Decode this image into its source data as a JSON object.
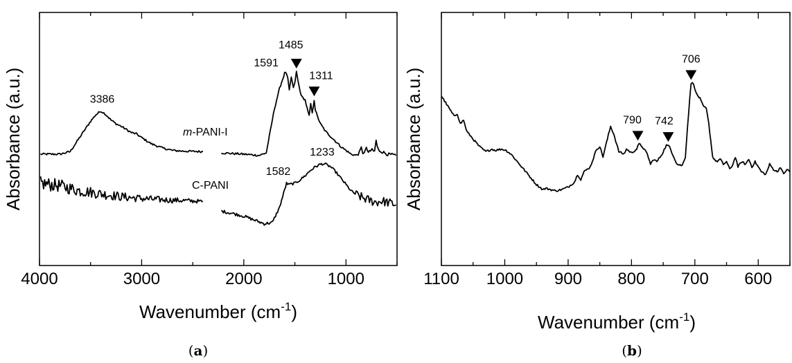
{
  "chart_data": [
    {
      "panel": "(a)",
      "panel_letter": "a",
      "type": "line",
      "xlabel": "Wavenumber (cm",
      "xlabel_sup": "-1",
      "xlabel_close": ")",
      "ylabel": "Absorbance (a.u.)",
      "xlim": [
        4000,
        500
      ],
      "x_ticks": [
        4000,
        3000,
        2000,
        1000
      ],
      "ylim": [
        0,
        1
      ],
      "x_gap": [
        2400,
        2220
      ],
      "series": [
        {
          "name": "m-PANI-I",
          "label_italic": "m",
          "label_rest": "-PANI-I",
          "noise": 0.004,
          "points": [
            [
              3990,
              0.44
            ],
            [
              3800,
              0.44
            ],
            [
              3700,
              0.45
            ],
            [
              3600,
              0.51
            ],
            [
              3500,
              0.57
            ],
            [
              3450,
              0.595
            ],
            [
              3400,
              0.61
            ],
            [
              3360,
              0.6
            ],
            [
              3300,
              0.575
            ],
            [
              3250,
              0.56
            ],
            [
              3200,
              0.55
            ],
            [
              3100,
              0.525
            ],
            [
              3050,
              0.52
            ],
            [
              3000,
              0.505
            ],
            [
              2900,
              0.48
            ],
            [
              2800,
              0.465
            ],
            [
              2700,
              0.455
            ],
            [
              2600,
              0.452
            ],
            [
              2400,
              0.45
            ],
            [
              2220,
              0.445
            ],
            [
              2000,
              0.44
            ],
            [
              1850,
              0.435
            ],
            [
              1780,
              0.445
            ],
            [
              1700,
              0.62
            ],
            [
              1650,
              0.7
            ],
            [
              1600,
              0.76
            ],
            [
              1591,
              0.765
            ],
            [
              1570,
              0.74
            ],
            [
              1555,
              0.69
            ],
            [
              1535,
              0.745
            ],
            [
              1515,
              0.7
            ],
            [
              1500,
              0.725
            ],
            [
              1485,
              0.765
            ],
            [
              1470,
              0.73
            ],
            [
              1450,
              0.69
            ],
            [
              1430,
              0.665
            ],
            [
              1400,
              0.655
            ],
            [
              1380,
              0.62
            ],
            [
              1360,
              0.59
            ],
            [
              1345,
              0.64
            ],
            [
              1330,
              0.6
            ],
            [
              1311,
              0.655
            ],
            [
              1300,
              0.615
            ],
            [
              1280,
              0.59
            ],
            [
              1250,
              0.56
            ],
            [
              1200,
              0.53
            ],
            [
              1150,
              0.51
            ],
            [
              1100,
              0.49
            ],
            [
              1050,
              0.47
            ],
            [
              1000,
              0.455
            ],
            [
              950,
              0.44
            ],
            [
              900,
              0.435
            ],
            [
              870,
              0.445
            ],
            [
              850,
              0.465
            ],
            [
              835,
              0.445
            ],
            [
              820,
              0.45
            ],
            [
              800,
              0.462
            ],
            [
              780,
              0.448
            ],
            [
              760,
              0.45
            ],
            [
              745,
              0.462
            ],
            [
              730,
              0.45
            ],
            [
              720,
              0.452
            ],
            [
              705,
              0.495
            ],
            [
              695,
              0.47
            ],
            [
              680,
              0.455
            ],
            [
              650,
              0.45
            ],
            [
              620,
              0.445
            ],
            [
              600,
              0.44
            ],
            [
              560,
              0.438
            ],
            [
              510,
              0.435
            ]
          ]
        },
        {
          "name": "C-PANI",
          "noise": 0.005,
          "points": [
            [
              3990,
              0.325
            ],
            [
              3900,
              0.32
            ],
            [
              3800,
              0.315
            ],
            [
              3700,
              0.305
            ],
            [
              3600,
              0.295
            ],
            [
              3500,
              0.29
            ],
            [
              3400,
              0.283
            ],
            [
              3300,
              0.278
            ],
            [
              3200,
              0.272
            ],
            [
              3100,
              0.268
            ],
            [
              3000,
              0.265
            ],
            [
              2900,
              0.262
            ],
            [
              2800,
              0.26
            ],
            [
              2700,
              0.258
            ],
            [
              2600,
              0.257
            ],
            [
              2500,
              0.255
            ],
            [
              2400,
              0.253
            ],
            [
              2220,
              0.215
            ],
            [
              2100,
              0.205
            ],
            [
              2000,
              0.195
            ],
            [
              1900,
              0.18
            ],
            [
              1800,
              0.165
            ],
            [
              1720,
              0.17
            ],
            [
              1650,
              0.23
            ],
            [
              1600,
              0.3
            ],
            [
              1582,
              0.325
            ],
            [
              1560,
              0.32
            ],
            [
              1500,
              0.325
            ],
            [
              1450,
              0.338
            ],
            [
              1400,
              0.355
            ],
            [
              1350,
              0.375
            ],
            [
              1300,
              0.39
            ],
            [
              1250,
              0.4
            ],
            [
              1233,
              0.402
            ],
            [
              1200,
              0.4
            ],
            [
              1150,
              0.39
            ],
            [
              1100,
              0.37
            ],
            [
              1050,
              0.345
            ],
            [
              1000,
              0.32
            ],
            [
              950,
              0.295
            ],
            [
              900,
              0.28
            ],
            [
              850,
              0.27
            ],
            [
              800,
              0.262
            ],
            [
              750,
              0.255
            ],
            [
              700,
              0.25
            ],
            [
              650,
              0.255
            ],
            [
              600,
              0.25
            ],
            [
              550,
              0.245
            ],
            [
              510,
              0.24
            ]
          ]
        }
      ],
      "noise_regions": [
        {
          "series": 0,
          "from": 900,
          "to": 500,
          "amp": 0.006
        },
        {
          "series": 1,
          "from": 3990,
          "to": 2400,
          "amp": 0.028,
          "taper_to": 0.007
        },
        {
          "series": 1,
          "from": 2220,
          "to": 1700,
          "amp": 0.006
        },
        {
          "series": 1,
          "from": 900,
          "to": 500,
          "amp": 0.018
        }
      ],
      "annotations": [
        {
          "text": "3386",
          "x": 3386,
          "y": 0.61,
          "marker": false
        },
        {
          "text": "1591",
          "x": 1591,
          "y": 0.765,
          "marker": false
        },
        {
          "text": "1485",
          "x": 1485,
          "y": 0.765,
          "marker": true
        },
        {
          "text": "1311",
          "x": 1311,
          "y": 0.655,
          "marker": true
        },
        {
          "text": "1582",
          "x": 1582,
          "y": 0.325,
          "marker": false
        },
        {
          "text": "1233",
          "x": 1233,
          "y": 0.402,
          "marker": false
        }
      ]
    },
    {
      "panel": "(b)",
      "panel_letter": "b",
      "type": "line",
      "xlabel": "Wavenumber (cm",
      "xlabel_sup": "-1",
      "xlabel_close": ")",
      "ylabel": "Absorbance (a.u.)",
      "xlim": [
        1100,
        550
      ],
      "x_ticks": [
        1100,
        1000,
        900,
        800,
        700,
        600
      ],
      "ylim": [
        0,
        1
      ],
      "series": [
        {
          "noise": 0.004,
          "points": [
            [
              1100,
              0.67
            ],
            [
              1090,
              0.63
            ],
            [
              1080,
              0.59
            ],
            [
              1075,
              0.6
            ],
            [
              1070,
              0.56
            ],
            [
              1065,
              0.575
            ],
            [
              1060,
              0.53
            ],
            [
              1050,
              0.5
            ],
            [
              1040,
              0.47
            ],
            [
              1030,
              0.45
            ],
            [
              1020,
              0.46
            ],
            [
              1015,
              0.455
            ],
            [
              1005,
              0.46
            ],
            [
              998,
              0.455
            ],
            [
              990,
              0.44
            ],
            [
              980,
              0.41
            ],
            [
              970,
              0.38
            ],
            [
              960,
              0.35
            ],
            [
              950,
              0.32
            ],
            [
              940,
              0.3
            ],
            [
              935,
              0.305
            ],
            [
              920,
              0.295
            ],
            [
              910,
              0.3
            ],
            [
              900,
              0.31
            ],
            [
              890,
              0.33
            ],
            [
              885,
              0.36
            ],
            [
              880,
              0.34
            ],
            [
              875,
              0.37
            ],
            [
              865,
              0.39
            ],
            [
              855,
              0.46
            ],
            [
              850,
              0.47
            ],
            [
              845,
              0.43
            ],
            [
              838,
              0.5
            ],
            [
              833,
              0.55
            ],
            [
              828,
              0.52
            ],
            [
              820,
              0.45
            ],
            [
              812,
              0.44
            ],
            [
              808,
              0.46
            ],
            [
              800,
              0.445
            ],
            [
              792,
              0.46
            ],
            [
              788,
              0.48
            ],
            [
              783,
              0.47
            ],
            [
              775,
              0.44
            ],
            [
              770,
              0.4
            ],
            [
              765,
              0.42
            ],
            [
              760,
              0.41
            ],
            [
              752,
              0.44
            ],
            [
              745,
              0.475
            ],
            [
              740,
              0.47
            ],
            [
              735,
              0.44
            ],
            [
              728,
              0.4
            ],
            [
              720,
              0.395
            ],
            [
              715,
              0.43
            ],
            [
              710,
              0.6
            ],
            [
              706,
              0.72
            ],
            [
              702,
              0.72
            ],
            [
              698,
              0.68
            ],
            [
              692,
              0.66
            ],
            [
              687,
              0.63
            ],
            [
              682,
              0.62
            ],
            [
              678,
              0.56
            ],
            [
              672,
              0.43
            ],
            [
              666,
              0.41
            ],
            [
              660,
              0.42
            ],
            [
              655,
              0.4
            ],
            [
              650,
              0.41
            ],
            [
              645,
              0.38
            ],
            [
              640,
              0.4
            ],
            [
              636,
              0.43
            ],
            [
              632,
              0.39
            ],
            [
              626,
              0.41
            ],
            [
              620,
              0.4
            ],
            [
              615,
              0.42
            ],
            [
              610,
              0.39
            ],
            [
              605,
              0.41
            ],
            [
              600,
              0.39
            ],
            [
              595,
              0.37
            ],
            [
              588,
              0.36
            ],
            [
              582,
              0.4
            ],
            [
              576,
              0.38
            ],
            [
              570,
              0.37
            ],
            [
              565,
              0.39
            ],
            [
              560,
              0.36
            ],
            [
              555,
              0.38
            ],
            [
              550,
              0.37
            ]
          ]
        }
      ],
      "annotations": [
        {
          "text": "790",
          "x": 790,
          "y": 0.48,
          "marker": true
        },
        {
          "text": "742",
          "x": 742,
          "y": 0.475,
          "marker": true
        },
        {
          "text": "706",
          "x": 706,
          "y": 0.72,
          "marker": true
        }
      ]
    }
  ]
}
